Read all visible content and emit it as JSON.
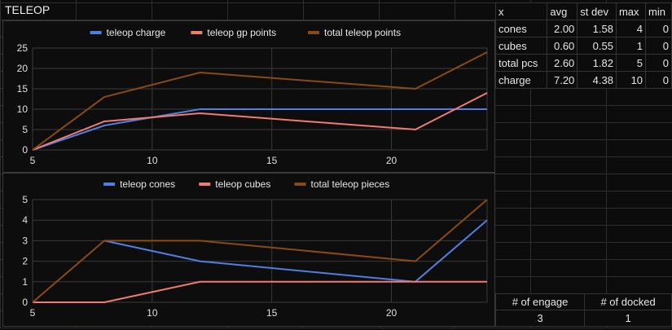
{
  "sheet": {
    "title": "TELEOP"
  },
  "stats_table": {
    "headers": [
      "x",
      "avg",
      "st dev",
      "max",
      "min"
    ],
    "rows": [
      [
        "cones",
        "2.00",
        "1.58",
        "4",
        "0"
      ],
      [
        "cubes",
        "0.60",
        "0.55",
        "1",
        "0"
      ],
      [
        "total pcs",
        "2.60",
        "1.82",
        "5",
        "0"
      ],
      [
        "charge",
        "7.20",
        "4.38",
        "10",
        "0"
      ]
    ]
  },
  "summary": {
    "headers": [
      "# of engage",
      "# of docked"
    ],
    "values": [
      "3",
      "1"
    ]
  },
  "colors": {
    "blue": "#4f7fe0",
    "red": "#f07b72",
    "brown": "#8b4a13"
  },
  "chart_data": [
    {
      "type": "line",
      "title": "",
      "xlabel": "",
      "ylabel": "",
      "xlim": [
        5,
        24
      ],
      "ylim": [
        0,
        25
      ],
      "xticks": [
        "5",
        "10",
        "15",
        "20"
      ],
      "yticks": [
        "0",
        "5",
        "10",
        "15",
        "20",
        "25"
      ],
      "legend": "top",
      "grid": true,
      "series": [
        {
          "name": "teleop charge",
          "color": "#4f7fe0",
          "x": [
            5,
            8,
            12,
            21,
            24
          ],
          "y": [
            0,
            6,
            10,
            10,
            10
          ]
        },
        {
          "name": "teleop gp points",
          "color": "#f07b72",
          "x": [
            5,
            8,
            12,
            21,
            24
          ],
          "y": [
            0,
            7,
            9,
            5,
            14
          ]
        },
        {
          "name": "total teleop points",
          "color": "#8b4a13",
          "x": [
            5,
            8,
            12,
            21,
            24
          ],
          "y": [
            0,
            13,
            19,
            15,
            24
          ]
        }
      ]
    },
    {
      "type": "line",
      "title": "",
      "xlabel": "",
      "ylabel": "",
      "xlim": [
        5,
        24
      ],
      "ylim": [
        0,
        5
      ],
      "xticks": [
        "5",
        "10",
        "15",
        "20"
      ],
      "yticks": [
        "0",
        "1",
        "2",
        "3",
        "4",
        "5"
      ],
      "legend": "top",
      "grid": true,
      "series": [
        {
          "name": "teleop cones",
          "color": "#4f7fe0",
          "x": [
            8,
            12,
            21,
            24
          ],
          "y": [
            3,
            2,
            1,
            4
          ]
        },
        {
          "name": "teleop cubes",
          "color": "#f07b72",
          "x": [
            5,
            8,
            12,
            21,
            24
          ],
          "y": [
            0,
            0,
            1,
            1,
            1
          ]
        },
        {
          "name": "total teleop pieces",
          "color": "#8b4a13",
          "x": [
            5,
            8,
            12,
            21,
            24
          ],
          "y": [
            0,
            3,
            3,
            2,
            5
          ]
        }
      ]
    }
  ]
}
